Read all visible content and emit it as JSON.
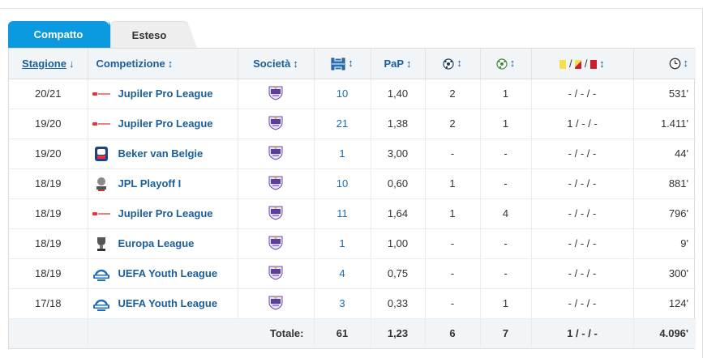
{
  "tabs": [
    {
      "label": "Compatto",
      "active": true
    },
    {
      "label": "Esteso",
      "active": false
    }
  ],
  "headers": {
    "season": "Stagione",
    "competition": "Competizione",
    "club": "Società",
    "ppg": "PaP",
    "cards_sep1": "/",
    "cards_sep2": "/"
  },
  "colors": {
    "accent": "#0b9ae0",
    "link": "#1a5e9a",
    "yellow_card": "#f7e04a",
    "red_card": "#cc1f2e"
  },
  "rows": [
    {
      "season": "20/21",
      "competition": "Jupiler Pro League",
      "logo": "jupiler-pro-league-logo",
      "apps": "10",
      "ppg": "1,40",
      "goals": "2",
      "assists": "1",
      "cards": "- / - / -",
      "minutes": "531'"
    },
    {
      "season": "19/20",
      "competition": "Jupiler Pro League",
      "logo": "jupiler-pro-league-logo",
      "apps": "21",
      "ppg": "1,38",
      "goals": "2",
      "assists": "1",
      "cards": "1 / - / -",
      "minutes": "1.411'"
    },
    {
      "season": "19/20",
      "competition": "Beker van Belgie",
      "logo": "beker-van-belgie-logo",
      "apps": "1",
      "ppg": "3,00",
      "goals": "-",
      "assists": "-",
      "cards": "- / - / -",
      "minutes": "44'"
    },
    {
      "season": "18/19",
      "competition": "JPL Playoff I",
      "logo": "jpl-playoff-logo",
      "apps": "10",
      "ppg": "0,60",
      "goals": "1",
      "assists": "-",
      "cards": "- / - / -",
      "minutes": "881'"
    },
    {
      "season": "18/19",
      "competition": "Jupiler Pro League",
      "logo": "jupiler-pro-league-logo",
      "apps": "11",
      "ppg": "1,64",
      "goals": "1",
      "assists": "4",
      "cards": "- / - / -",
      "minutes": "796'"
    },
    {
      "season": "18/19",
      "competition": "Europa League",
      "logo": "europa-league-logo",
      "apps": "1",
      "ppg": "1,00",
      "goals": "-",
      "assists": "-",
      "cards": "- / - / -",
      "minutes": "9'"
    },
    {
      "season": "18/19",
      "competition": "UEFA Youth League",
      "logo": "uefa-youth-league-logo",
      "apps": "4",
      "ppg": "0,75",
      "goals": "-",
      "assists": "-",
      "cards": "- / - / -",
      "minutes": "300'"
    },
    {
      "season": "17/18",
      "competition": "UEFA Youth League",
      "logo": "uefa-youth-league-logo",
      "apps": "3",
      "ppg": "0,33",
      "goals": "-",
      "assists": "1",
      "cards": "- / - / -",
      "minutes": "124'"
    }
  ],
  "totals": {
    "label": "Totale:",
    "apps": "61",
    "ppg": "1,23",
    "goals": "6",
    "assists": "7",
    "cards": "1 / - / -",
    "minutes": "4.096'"
  }
}
